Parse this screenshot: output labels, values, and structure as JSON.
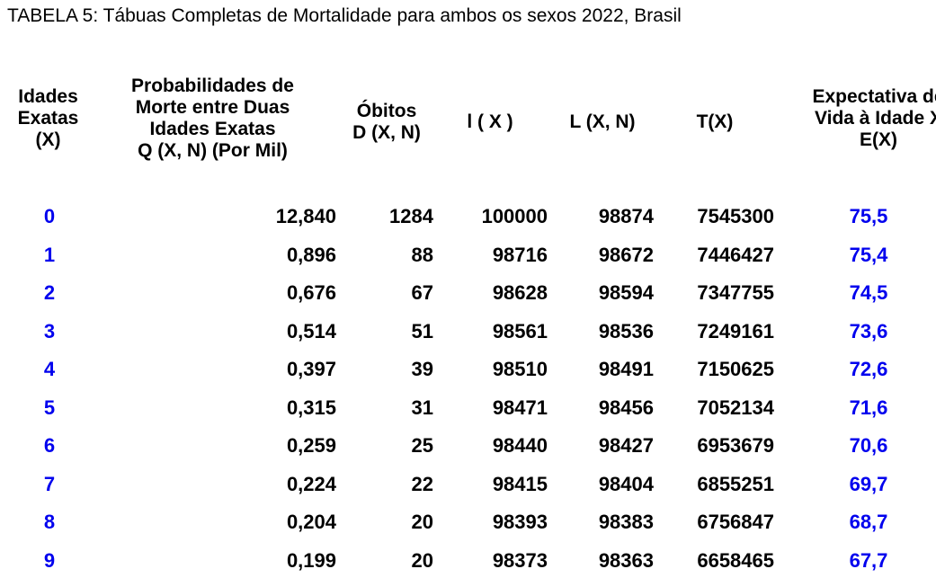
{
  "caption": "TABELA  5: Tábuas Completas de Mortalidade para ambos os sexos 2022, Brasil",
  "headers": {
    "idade": "Idades\nExatas\n(X)",
    "qxn": "Probabilidades de\nMorte entre Duas\nIdades Exatas\nQ (X, N)  (Por Mil)",
    "obitos": "Óbitos\nD (X, N)",
    "lx": "l ( X )",
    "lxn": "L  (X, N)",
    "tx": "T(X)",
    "ex": "Expectativa de\nVida à Idade X\nE(X)"
  },
  "rows": [
    {
      "age": "0",
      "q": "12,840",
      "d": "1284",
      "l": "100000",
      "ln": "98874",
      "t": "7545300",
      "e": "75,5"
    },
    {
      "age": "1",
      "q": "0,896",
      "d": "88",
      "l": "98716",
      "ln": "98672",
      "t": "7446427",
      "e": "75,4"
    },
    {
      "age": "2",
      "q": "0,676",
      "d": "67",
      "l": "98628",
      "ln": "98594",
      "t": "7347755",
      "e": "74,5"
    },
    {
      "age": "3",
      "q": "0,514",
      "d": "51",
      "l": "98561",
      "ln": "98536",
      "t": "7249161",
      "e": "73,6"
    },
    {
      "age": "4",
      "q": "0,397",
      "d": "39",
      "l": "98510",
      "ln": "98491",
      "t": "7150625",
      "e": "72,6"
    },
    {
      "age": "5",
      "q": "0,315",
      "d": "31",
      "l": "98471",
      "ln": "98456",
      "t": "7052134",
      "e": "71,6"
    },
    {
      "age": "6",
      "q": "0,259",
      "d": "25",
      "l": "98440",
      "ln": "98427",
      "t": "6953679",
      "e": "70,6"
    },
    {
      "age": "7",
      "q": "0,224",
      "d": "22",
      "l": "98415",
      "ln": "98404",
      "t": "6855251",
      "e": "69,7"
    },
    {
      "age": "8",
      "q": "0,204",
      "d": "20",
      "l": "98393",
      "ln": "98383",
      "t": "6756847",
      "e": "68,7"
    },
    {
      "age": "9",
      "q": "0,199",
      "d": "20",
      "l": "98373",
      "ln": "98363",
      "t": "6658465",
      "e": "67,7"
    }
  ]
}
